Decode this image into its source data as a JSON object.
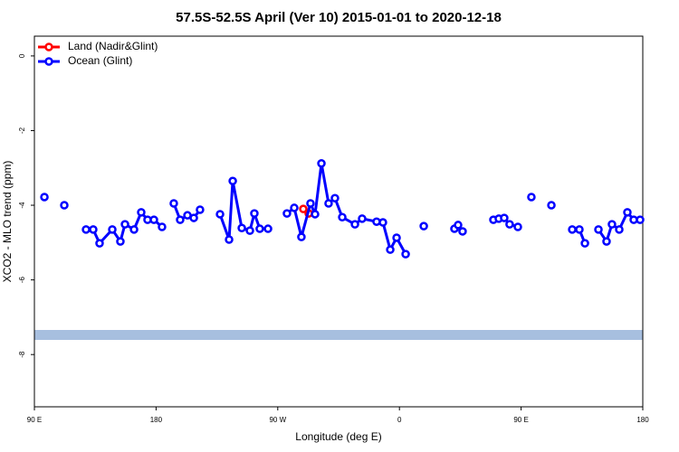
{
  "chart_data": {
    "type": "line",
    "title": "57.5S-52.5S April (Ver 10)   2015-01-01 to 2020-12-18",
    "x_label": "Longitude (deg E)",
    "y_label": "XCO2 - MLO trend (ppm)",
    "xlim": [
      90,
      540
    ],
    "xticks": [
      {
        "value": 90,
        "label": "90 E"
      },
      180,
      {
        "value": 270,
        "label": "90 W"
      },
      {
        "value": 360,
        "label": "0"
      },
      {
        "value": 450,
        "label": "90 E"
      },
      {
        "value": 540,
        "label": "180"
      }
    ],
    "ylim": [
      -9.4,
      0.53
    ],
    "yticks": [
      0,
      -2,
      -4,
      -6,
      -8
    ],
    "legend": "top-left",
    "series": [
      {
        "name": "Land (Nadir&Glint)",
        "color": "#ff0000",
        "x": [
          288.9,
          292.9
        ],
        "values": [
          -4.1,
          -4.22
        ]
      },
      {
        "name": "Ocean (Glint)",
        "color": "#0000ff",
        "x": [
          97.4,
          null,
          112.1,
          null,
          128.2,
          133.5,
          138.2,
          147.6,
          153.6,
          157.0,
          163.7,
          169.0,
          173.7,
          178.4,
          184.4,
          null,
          193.1,
          197.8,
          203.2,
          207.9,
          212.5,
          null,
          227.3,
          234.0,
          236.7,
          243.4,
          249.4,
          252.7,
          256.7,
          262.8,
          null,
          276.8,
          282.2,
          287.5,
          294.2,
          297.6,
          302.3,
          307.6,
          312.3,
          317.7,
          327.1,
          332.4,
          343.1,
          347.8,
          353.2,
          357.9,
          364.6,
          null,
          378.0,
          null,
          400.7,
          403.4,
          406.7,
          null,
          429.5,
          433.5,
          437.5,
          441.5,
          447.6,
          null,
          457.6,
          null,
          472.4,
          null,
          487.8,
          493.1,
          497.2,
          null,
          507.2,
          513.2,
          517.2,
          522.6,
          528.6,
          533.3,
          538.0
        ],
        "values": [
          -3.78,
          null,
          -4.0,
          null,
          -4.65,
          -4.65,
          -5.02,
          -4.65,
          -4.97,
          -4.51,
          -4.65,
          -4.19,
          -4.39,
          -4.39,
          -4.58,
          null,
          -3.95,
          -4.39,
          -4.27,
          -4.34,
          -4.12,
          null,
          -4.24,
          -4.92,
          -3.35,
          -4.61,
          -4.68,
          -4.22,
          -4.63,
          -4.63,
          null,
          -4.22,
          -4.07,
          -4.85,
          -3.95,
          -4.24,
          -2.88,
          -3.95,
          -3.81,
          -4.32,
          -4.51,
          -4.36,
          -4.44,
          -4.46,
          -5.19,
          -4.87,
          -5.31,
          null,
          -4.56,
          null,
          -4.63,
          -4.53,
          -4.7,
          null,
          -4.39,
          -4.36,
          -4.34,
          -4.51,
          -4.58,
          null,
          -3.78,
          null,
          -4.0,
          null,
          -4.65,
          -4.65,
          -5.02,
          null,
          -4.65,
          -4.97,
          -4.51,
          -4.65,
          -4.19,
          -4.39,
          -4.39
        ]
      }
    ]
  }
}
